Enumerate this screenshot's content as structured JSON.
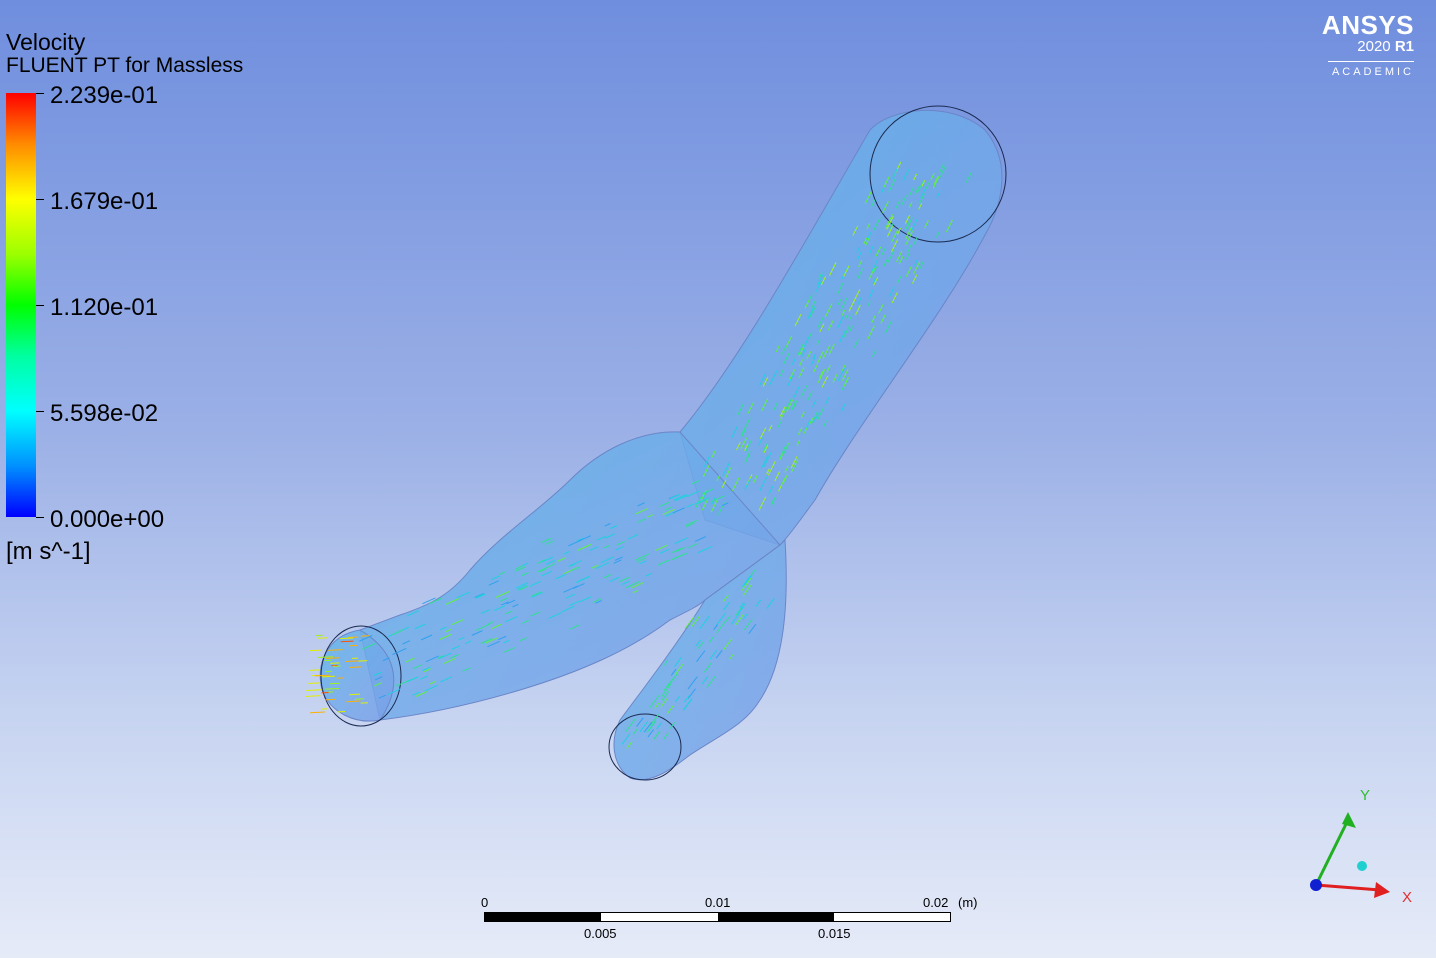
{
  "legend": {
    "title": "Velocity",
    "subtitle": "FLUENT PT for Massless",
    "ticks": [
      "2.239e-01",
      "1.679e-01",
      "1.120e-01",
      "5.598e-02",
      "0.000e+00"
    ],
    "unit": "[m s^-1]",
    "colors": [
      "#ff0000",
      "#ffff00",
      "#00ff00",
      "#00ffff",
      "#0000ff"
    ]
  },
  "brand": {
    "name": "ANSYS",
    "version": "2020",
    "release": "R1",
    "edition": "ACADEMIC"
  },
  "scale_bar": {
    "top_labels": [
      "0",
      "0.01",
      "0.02"
    ],
    "unit": "(m)",
    "bottom_labels": [
      "0.005",
      "0.015"
    ]
  },
  "axes": {
    "x_label": "X",
    "y_label": "Y",
    "x_color": "#e02020",
    "y_color": "#20b020",
    "z_color": "#1020d0"
  },
  "colors": {
    "background_top": "#6f8ede",
    "background_bottom": "#e6ebf8",
    "vessel_fill": "#7fa6e6"
  }
}
